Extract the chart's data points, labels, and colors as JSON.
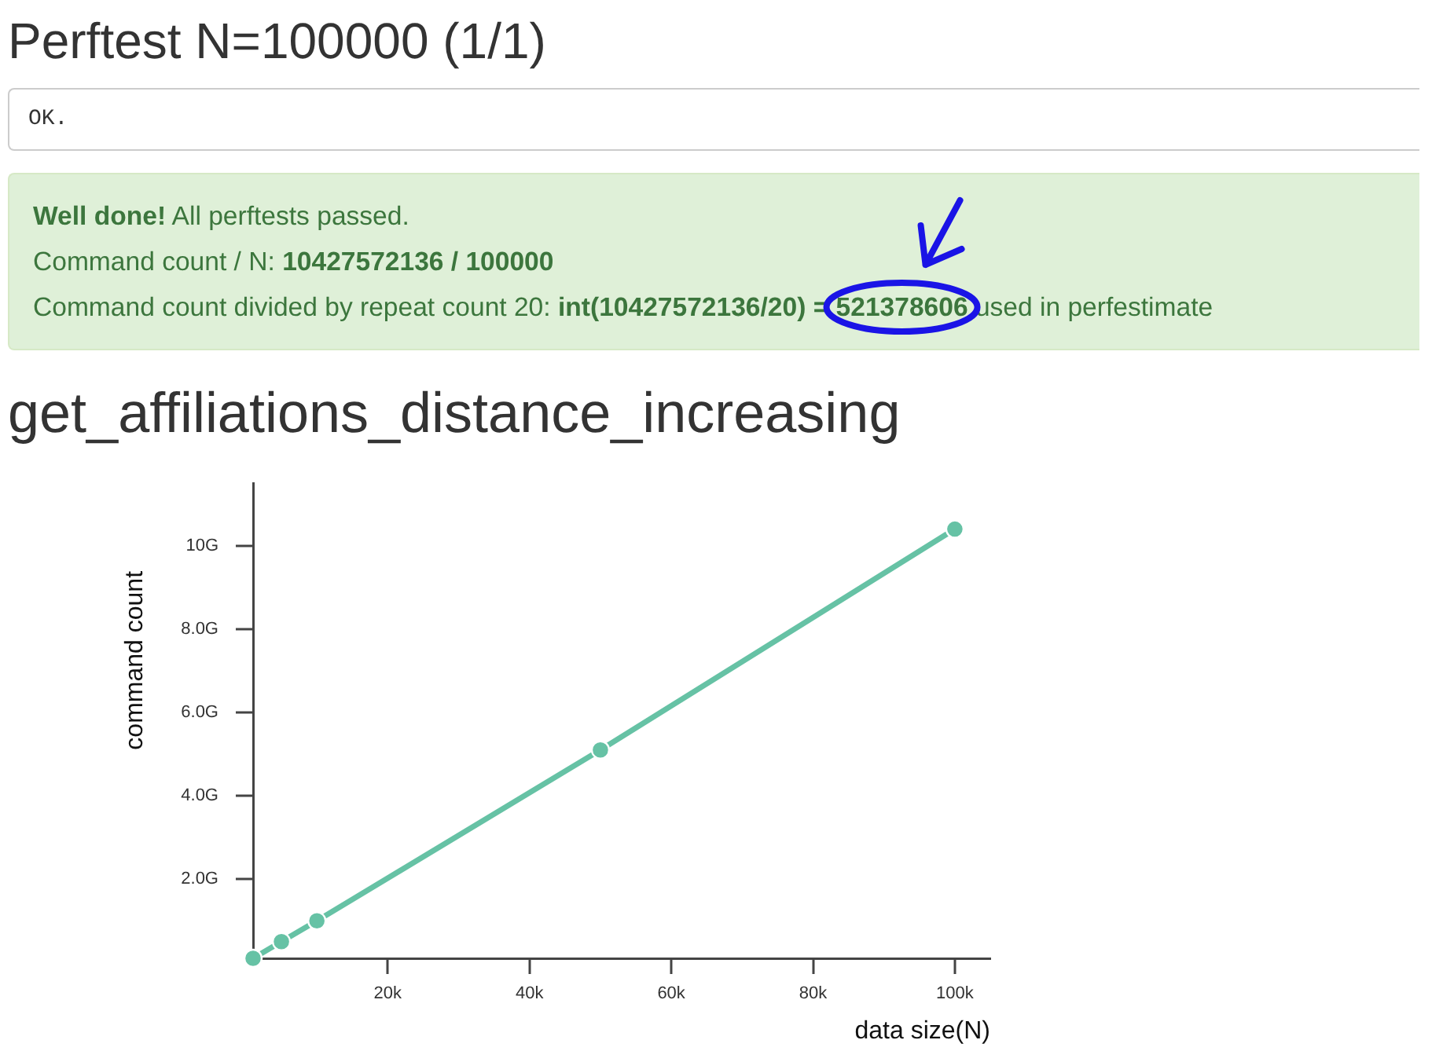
{
  "chart_data": {
    "type": "line",
    "title": "get_affiliations_distance_increasing",
    "xlabel": "data size(N)",
    "ylabel": "command count",
    "annotations": [
      "Perftest N=100000 (1/1)",
      "OK.",
      "Well done!",
      "All perftests passed.",
      "Command count / N:",
      "10427572136 / 100000",
      "Command count divided by repeat count 20:",
      "int(10427572136/20) = 521378606",
      "used in perfestimate"
    ],
    "x": [
      1,
      5,
      10,
      50,
      100
    ],
    "series": [
      {
        "color": "#66c2a5",
        "values": [
          0.1,
          0.5,
          1.0,
          5.1,
          10.4
        ]
      }
    ],
    "xlim": [
      1,
      105
    ],
    "xticks": [
      {
        "value": 20,
        "label": "20k"
      },
      {
        "value": 40,
        "label": "40k"
      },
      {
        "value": 60,
        "label": "60k"
      },
      {
        "value": 80,
        "label": "80k"
      },
      {
        "value": 100,
        "label": "100k"
      }
    ],
    "ylim": [
      0.1,
      11.5
    ],
    "yticks": [
      {
        "value": 2,
        "label": "2.0G"
      },
      {
        "value": 4,
        "label": "4.0G"
      },
      {
        "value": 6,
        "label": "6.0G"
      },
      {
        "value": 8,
        "label": "8.0G"
      },
      {
        "value": 10,
        "label": "10G"
      }
    ],
    "grid": false,
    "legend": false,
    "marker": "circle",
    "line_style": "solid"
  }
}
